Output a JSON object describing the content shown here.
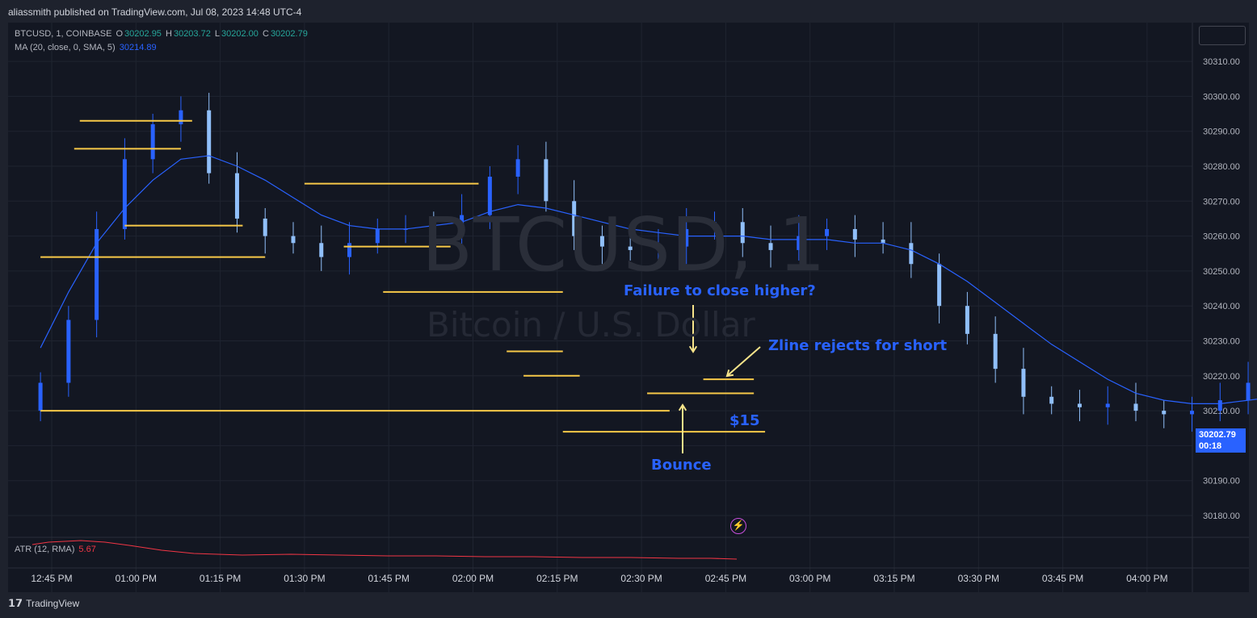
{
  "header": {
    "published": "aliassmith published on TradingView.com, Jul 08, 2023 14:48 UTC-4"
  },
  "legend": {
    "symbol": "BTCUSD, 1, COINBASE",
    "o_label": "O",
    "o_val": "30202.95",
    "h_label": "H",
    "h_val": "30203.72",
    "l_label": "L",
    "l_val": "30202.00",
    "c_label": "C",
    "c_val": "30202.79",
    "ma_label": "MA (20, close, 0, SMA, 5)",
    "ma_val": "30214.89",
    "atr_label": "ATR (12, RMA)",
    "atr_val": "5.67"
  },
  "watermark": {
    "line1": "BTCUSD, 1",
    "line2": "Bitcoin / U.S. Dollar"
  },
  "annotations": {
    "failure": "Failure to close higher?",
    "zline": "Zline rejects for short",
    "bounce": "Bounce",
    "dollar": "$15"
  },
  "price_tag": {
    "price": "30202.79",
    "countdown": "00:18"
  },
  "footer": {
    "brand": "TradingView"
  },
  "colors": {
    "bg": "#131722",
    "candle_up": "#2962ff",
    "candle_down": "#90bff9",
    "ma": "#2962ff",
    "level": "#f7c948",
    "atr": "#f23645"
  },
  "chart_data": {
    "type": "candlestick",
    "symbol": "BTCUSD",
    "interval": "1",
    "exchange": "COINBASE",
    "x_ticks": [
      "12:45 PM",
      "01:00 PM",
      "01:15 PM",
      "01:30 PM",
      "01:45 PM",
      "02:00 PM",
      "02:15 PM",
      "02:30 PM",
      "02:45 PM",
      "03:00 PM",
      "03:15 PM",
      "03:30 PM",
      "03:45 PM",
      "04:00 PM"
    ],
    "y_ticks": [
      "30180.00",
      "30190.00",
      "30200.00",
      "30210.00",
      "30220.00",
      "30230.00",
      "30240.00",
      "30250.00",
      "30260.00",
      "30270.00",
      "30280.00",
      "30290.00",
      "30300.00",
      "30310.00"
    ],
    "ylim": [
      30174,
      30320
    ],
    "close_series": [
      30218,
      30236,
      30262,
      30282,
      30292,
      30296,
      30278,
      30265,
      30260,
      30258,
      30254,
      30258,
      30262,
      30262,
      30260,
      30266,
      30277,
      30282,
      30270,
      30260,
      30257,
      30256,
      30257,
      30262,
      30264,
      30258,
      30256,
      30260,
      30262,
      30259,
      30258,
      30252,
      30240,
      30232,
      30222,
      30214,
      30212,
      30211,
      30212,
      30210,
      30209,
      30210,
      30213,
      30218,
      30221,
      30220,
      30216,
      30213,
      30211,
      30204,
      30202.79
    ],
    "ma_series": [
      30228,
      30244,
      30258,
      30268,
      30276,
      30282,
      30283,
      30280,
      30276,
      30271,
      30266,
      30263,
      30262,
      30262,
      30263,
      30264,
      30267,
      30269,
      30268,
      30266,
      30264,
      30262,
      30261,
      30260,
      30260,
      30260,
      30259,
      30259,
      30259,
      30258,
      30258,
      30256,
      30252,
      30247,
      30241,
      30235,
      30229,
      30224,
      30219,
      30215,
      30213,
      30212,
      30212,
      30213,
      30214,
      30215,
      30215,
      30215,
      30214,
      30214,
      30214.89
    ],
    "levels": [
      {
        "price": 30293,
        "from": "12:50 PM",
        "to": "01:10 PM"
      },
      {
        "price": 30285,
        "from": "12:49 PM",
        "to": "01:08 PM"
      },
      {
        "price": 30263,
        "from": "12:58 PM",
        "to": "01:19 PM"
      },
      {
        "price": 30254,
        "from": "12:43 PM",
        "to": "01:23 PM"
      },
      {
        "price": 30275,
        "from": "01:30 PM",
        "to": "02:01 PM"
      },
      {
        "price": 30257,
        "from": "01:37 PM",
        "to": "01:56 PM"
      },
      {
        "price": 30244,
        "from": "01:44 PM",
        "to": "02:16 PM"
      },
      {
        "price": 30227,
        "from": "02:06 PM",
        "to": "02:16 PM"
      },
      {
        "price": 30220,
        "from": "02:09 PM",
        "to": "02:19 PM"
      },
      {
        "price": 30210,
        "from": "12:43 PM",
        "to": "02:35 PM"
      },
      {
        "price": 30204,
        "from": "02:16 PM",
        "to": "02:52 PM"
      },
      {
        "price": 30215,
        "from": "02:31 PM",
        "to": "02:50 PM"
      },
      {
        "price": 30219,
        "from": "02:41 PM",
        "to": "02:50 PM"
      }
    ],
    "atr": {
      "name": "ATR (12, RMA)",
      "value": 5.67
    },
    "grid": true,
    "legend_position": "top-left"
  }
}
